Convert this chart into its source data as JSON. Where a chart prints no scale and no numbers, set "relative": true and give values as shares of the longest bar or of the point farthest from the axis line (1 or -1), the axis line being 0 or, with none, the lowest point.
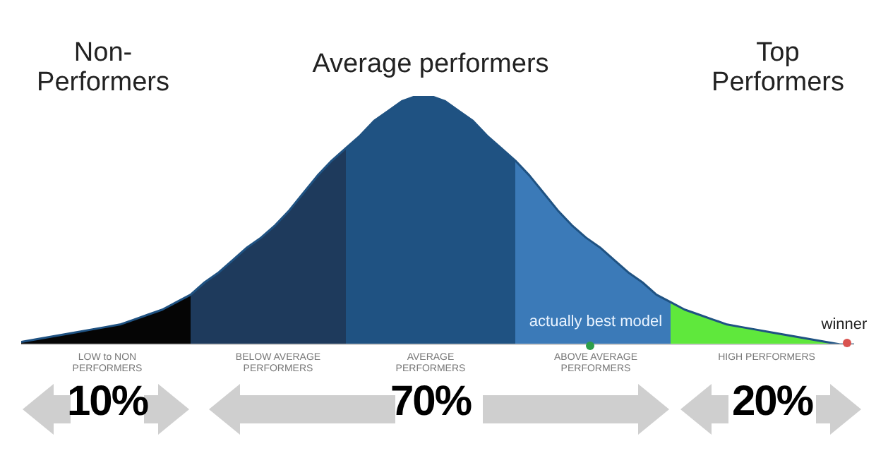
{
  "chart_data": {
    "type": "area",
    "relative": true,
    "legend": false,
    "grid": false,
    "categories": [
      null,
      null,
      null,
      null,
      null,
      null,
      null,
      null,
      null,
      null,
      null,
      null,
      null,
      null,
      null,
      null,
      null,
      null,
      null,
      null,
      null,
      null,
      null,
      null,
      null,
      null,
      null,
      null,
      null,
      null,
      null,
      null,
      null,
      null,
      null,
      null,
      null,
      null,
      null,
      null,
      null,
      null,
      null,
      null,
      null,
      null,
      null,
      null,
      null,
      null,
      null,
      null,
      null,
      null,
      null,
      null,
      null,
      null,
      null,
      null
    ],
    "series": [
      {
        "color": "#1f5282",
        "values": [
          0.01,
          0.02,
          0.03,
          0.04,
          0.05,
          0.06,
          0.07,
          0.08,
          0.1,
          0.12,
          0.14,
          0.17,
          0.2,
          0.25,
          0.29,
          0.34,
          0.39,
          0.43,
          0.48,
          0.54,
          0.61,
          0.68,
          0.74,
          0.79,
          0.84,
          0.9,
          0.94,
          0.98,
          1,
          1,
          0.98,
          0.94,
          0.9,
          0.84,
          0.79,
          0.74,
          0.68,
          0.61,
          0.54,
          0.48,
          0.43,
          0.39,
          0.34,
          0.29,
          0.25,
          0.2,
          0.17,
          0.14,
          0.12,
          0.1,
          0.08,
          0.07,
          0.06,
          0.05,
          0.04,
          0.03,
          0.02,
          0.01,
          0,
          0
        ],
        "colors": [
          "#050505",
          "#050505",
          "#050505",
          "#050505",
          "#050505",
          "#050505",
          "#050505",
          "#050505",
          "#050505",
          "#050505",
          "#050505",
          "#050505",
          "#050505",
          "#1e3a5c",
          "#1e3a5c",
          "#1e3a5c",
          "#1e3a5c",
          "#1e3a5c",
          "#1e3a5c",
          "#1e3a5c",
          "#1e3a5c",
          "#1e3a5c",
          "#1e3a5c",
          "#1e3a5c",
          "#1f5282",
          "#1f5282",
          "#1f5282",
          "#1f5282",
          "#1f5282",
          "#1f5282",
          "#1f5282",
          "#1f5282",
          "#1f5282",
          "#1f5282",
          "#1f5282",
          "#1f5282",
          "#3b7ab8",
          "#3b7ab8",
          "#3b7ab8",
          "#3b7ab8",
          "#3b7ab8",
          "#3b7ab8",
          "#3b7ab8",
          "#3b7ab8",
          "#3b7ab8",
          "#3b7ab8",
          "#3b7ab8",
          "#5fe83c",
          "#5fe83c",
          "#5fe83c",
          "#5fe83c",
          "#5fe83c",
          "#5fe83c",
          "#5fe83c",
          "#5fe83c",
          "#5fe83c",
          "#5fe83c",
          "#5fe83c",
          "#5fe83c",
          "#5fe83c"
        ]
      }
    ],
    "annotations": [
      "Non-Performers",
      "Average performers",
      "Top Performers",
      "actually best model",
      "winner",
      "LOW to NON PERFORMERS",
      "BELOW AVERAGE PERFORMERS",
      "AVERAGE PERFORMERS",
      "ABOVE AVERAGE PERFORMERS",
      "HIGH PERFORMERS",
      "10%",
      "70%",
      "20%"
    ]
  }
}
